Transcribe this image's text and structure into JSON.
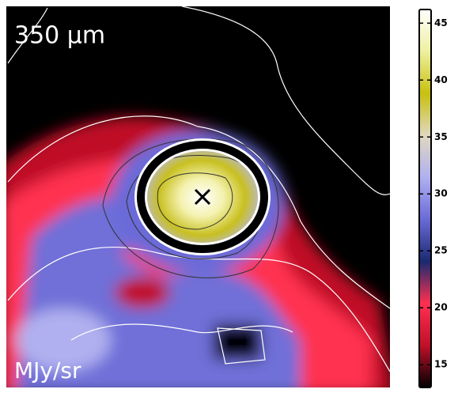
{
  "chart_data": {
    "type": "image",
    "title": "350 μm",
    "units": "MJy/sr",
    "colorbar": {
      "ylim": [
        13,
        46.2
      ],
      "yticks": [
        15,
        20,
        25,
        30,
        35,
        40,
        45
      ],
      "colors": [
        "#000000",
        "#c0102a",
        "#ff3050",
        "#1a2a70",
        "#6a6ad8",
        "#b0b0f0",
        "#e0d8c0",
        "#c8c010",
        "#eef0a0",
        "#ffffff"
      ]
    }
  }
}
